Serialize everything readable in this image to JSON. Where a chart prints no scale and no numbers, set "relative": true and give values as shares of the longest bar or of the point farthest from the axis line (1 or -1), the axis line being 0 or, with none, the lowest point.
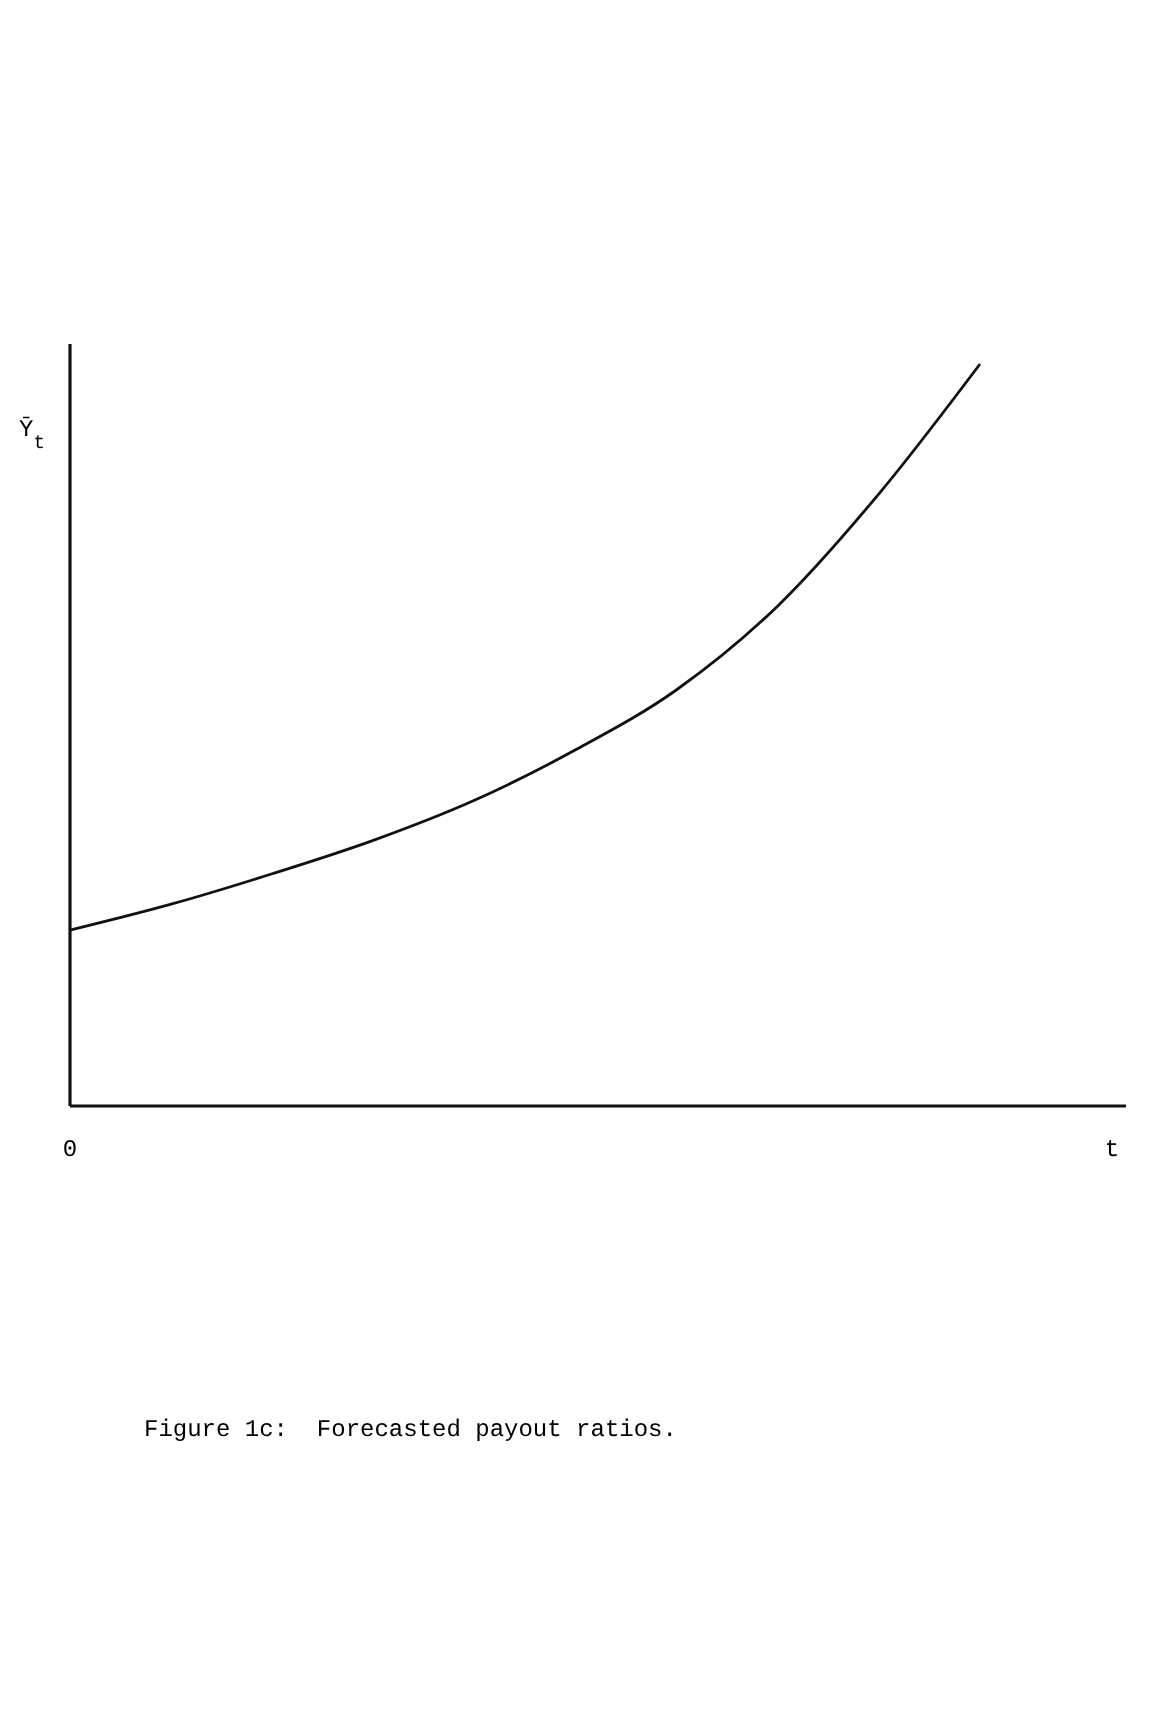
{
  "chart_data": {
    "type": "line",
    "relative": true,
    "categories": [
      null,
      null,
      null,
      null,
      null,
      null,
      null,
      null,
      null,
      null
    ],
    "values": [
      0.237,
      0.272,
      0.313,
      0.358,
      0.412,
      0.48,
      0.561,
      0.674,
      0.825,
      1
    ],
    "color": "#111111",
    "xlabel": "t",
    "ylabel": "Ȳ$_{t}$",
    "legend": false,
    "marker": "none",
    "line_style": "solid",
    "annotations": [
      "0",
      "Figure 1c:  Forecasted payout ratios."
    ]
  }
}
